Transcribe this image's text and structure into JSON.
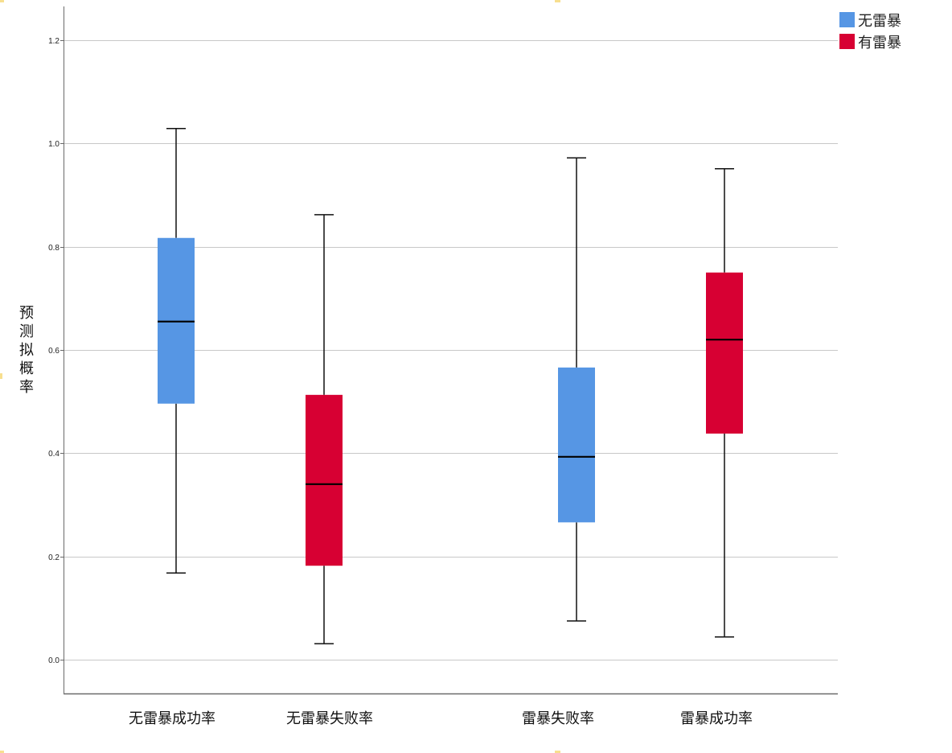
{
  "chart_data": {
    "type": "boxplot",
    "title": "",
    "xlabel": "",
    "ylabel": "预测拟概率",
    "ylim": [
      -0.06,
      1.27
    ],
    "yticks": [
      0.0,
      0.2,
      0.4,
      0.6,
      0.8,
      1.0,
      1.2
    ],
    "ytick_labels": [
      "0.0",
      "0.2",
      "0.4",
      "0.6",
      "0.8",
      "1.0",
      "1.2"
    ],
    "grid": true,
    "legend_position": "top-right",
    "categories": [
      "无雷暴成功率",
      "无雷暴失败率",
      "雷暴失败率",
      "雷暴成功率"
    ],
    "series": [
      {
        "name": "无雷暴",
        "color": "#5696e4"
      },
      {
        "name": "有雷暴",
        "color": "#d70033"
      }
    ],
    "boxes": [
      {
        "category": "无雷暴成功率",
        "series": "无雷暴",
        "min": 0.168,
        "q1": 0.496,
        "median": 0.655,
        "q3": 0.817,
        "max": 1.029
      },
      {
        "category": "无雷暴失败率",
        "series": "有雷暴",
        "min": 0.031,
        "q1": 0.182,
        "median": 0.34,
        "q3": 0.513,
        "max": 0.862
      },
      {
        "category": "雷暴失败率",
        "series": "无雷暴",
        "min": 0.075,
        "q1": 0.266,
        "median": 0.393,
        "q3": 0.566,
        "max": 0.972
      },
      {
        "category": "雷暴成功率",
        "series": "有雷暴",
        "min": 0.044,
        "q1": 0.438,
        "median": 0.62,
        "q3": 0.75,
        "max": 0.951
      }
    ]
  },
  "legend": {
    "items": [
      {
        "label": "无雷暴",
        "color": "#5696e4"
      },
      {
        "label": "有雷暴",
        "color": "#d70033"
      }
    ]
  },
  "axis": {
    "ylabel": "预测拟概率"
  }
}
